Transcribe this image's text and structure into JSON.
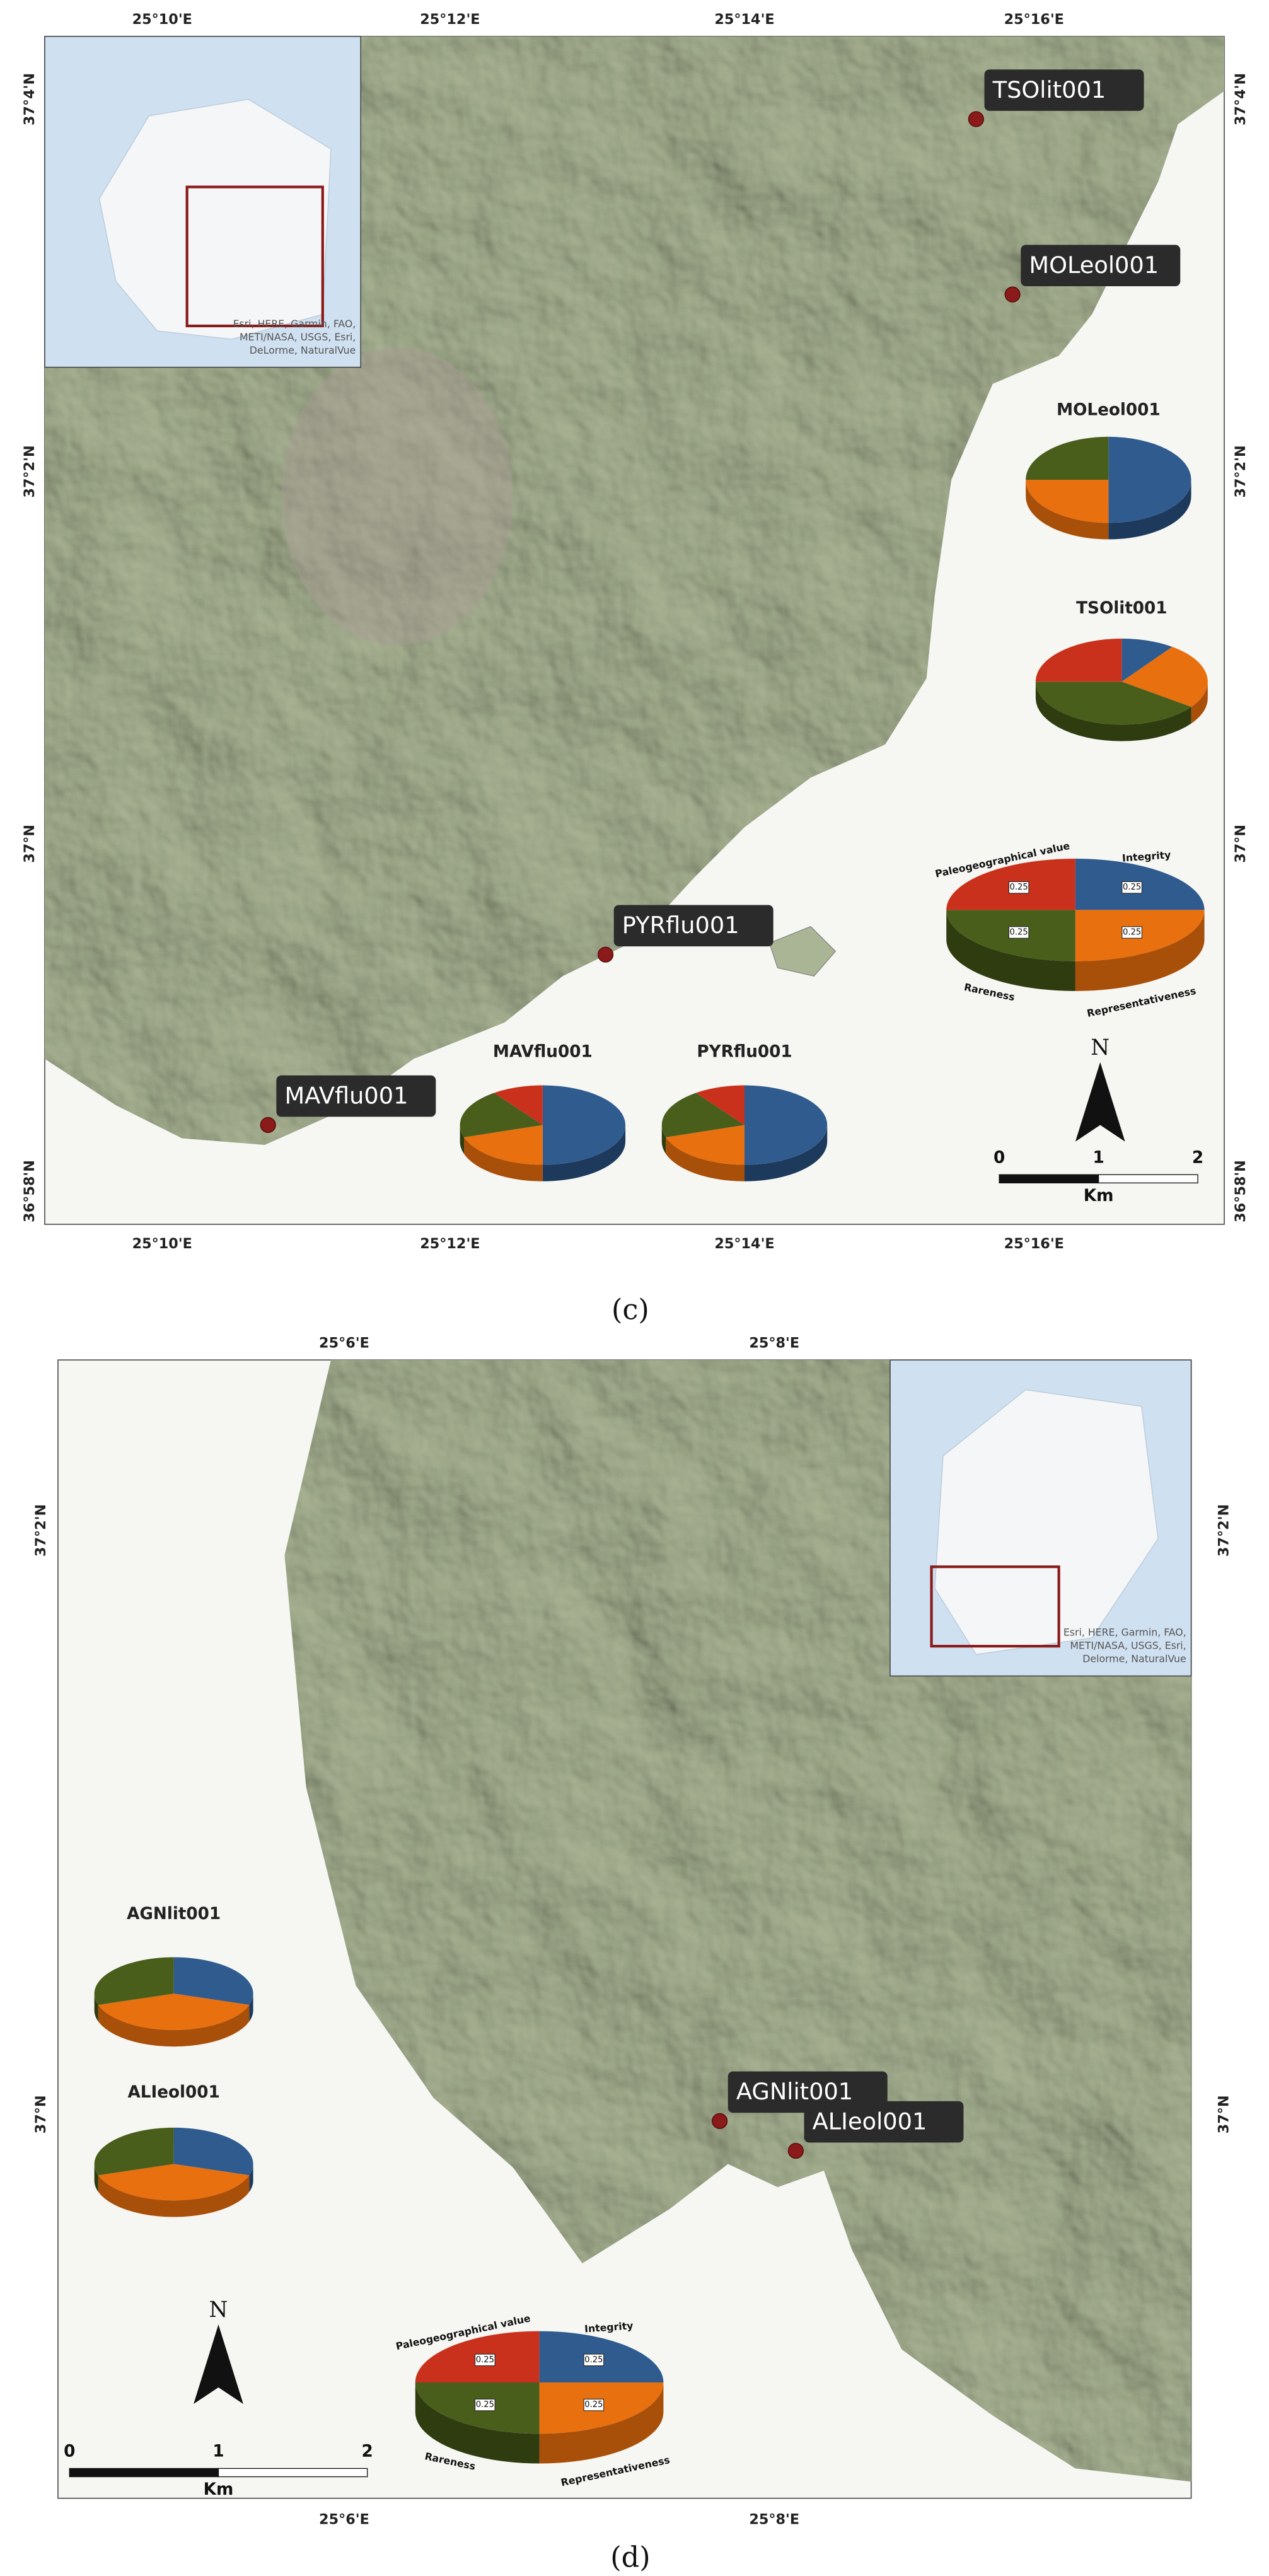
{
  "slice_colors": [
    "#2f5b8f",
    "#e8700f",
    "#4a5e1c",
    "#c9311c"
  ],
  "panels": [
    {
      "caption": "(c)",
      "lon_labels": [
        "25°10'E",
        "25°12'E",
        "25°14'E",
        "25°16'E"
      ],
      "lat_labels": [
        "37°4'N",
        "37°2'N",
        "37°N",
        "36°58'N"
      ],
      "inset_attribution": [
        "Esri, HERE, Garmin, FAO,",
        "METI/NASA, USGS, Esri,",
        "DeLorme, NaturalVue"
      ],
      "sites": [
        {
          "label": "TSOlit001"
        },
        {
          "label": "MOLeol001"
        },
        {
          "label": "PYRflu001"
        },
        {
          "label": "MAVflu001"
        }
      ],
      "pies": [
        {
          "type": "pie",
          "title": "MOLeol001",
          "values": [
            0.5,
            0.25,
            0.25,
            0
          ]
        },
        {
          "type": "pie",
          "title": "TSOlit001",
          "values": [
            0.1,
            0.25,
            0.4,
            0.25
          ]
        },
        {
          "type": "pie",
          "title": "MAVflu001",
          "values": [
            0.5,
            0.2,
            0.2,
            0.1
          ]
        },
        {
          "type": "pie",
          "title": "PYRflu001",
          "values": [
            0.5,
            0.2,
            0.2,
            0.1
          ]
        }
      ],
      "legend_pie": {
        "type": "pie",
        "categories": [
          "Integrity",
          "Representativeness",
          "Rareness",
          "Paleogeographical value"
        ],
        "values": [
          0.25,
          0.25,
          0.25,
          0.25
        ],
        "value_labels": [
          "0.25",
          "0.25",
          "0.25",
          "0.25"
        ]
      },
      "north": "N",
      "scale": {
        "ticks": [
          0,
          1,
          2
        ],
        "unit": "Km"
      }
    },
    {
      "caption": "(d)",
      "lon_labels": [
        "25°6'E",
        "25°8'E"
      ],
      "lat_labels": [
        "37°2'N",
        "37°N"
      ],
      "inset_attribution": [
        "Esri, HERE, Garmin, FAO,",
        "METI/NASA, USGS, Esri,",
        "Delorme, NaturalVue"
      ],
      "sites": [
        {
          "label": "AGNlit001"
        },
        {
          "label": "ALIeol001"
        }
      ],
      "pies": [
        {
          "type": "pie",
          "title": "AGNlit001",
          "values": [
            0.3,
            0.4,
            0.3,
            0
          ]
        },
        {
          "type": "pie",
          "title": "ALIeol001",
          "values": [
            0.3,
            0.4,
            0.3,
            0
          ]
        }
      ],
      "legend_pie": {
        "type": "pie",
        "categories": [
          "Integrity",
          "Representativeness",
          "Rareness",
          "Paleogeographical value"
        ],
        "values": [
          0.25,
          0.25,
          0.25,
          0.25
        ],
        "value_labels": [
          "0.25",
          "0.25",
          "0.25",
          "0.25"
        ]
      },
      "north": "N",
      "scale": {
        "ticks": [
          0,
          1,
          2
        ],
        "unit": "Km"
      }
    }
  ]
}
